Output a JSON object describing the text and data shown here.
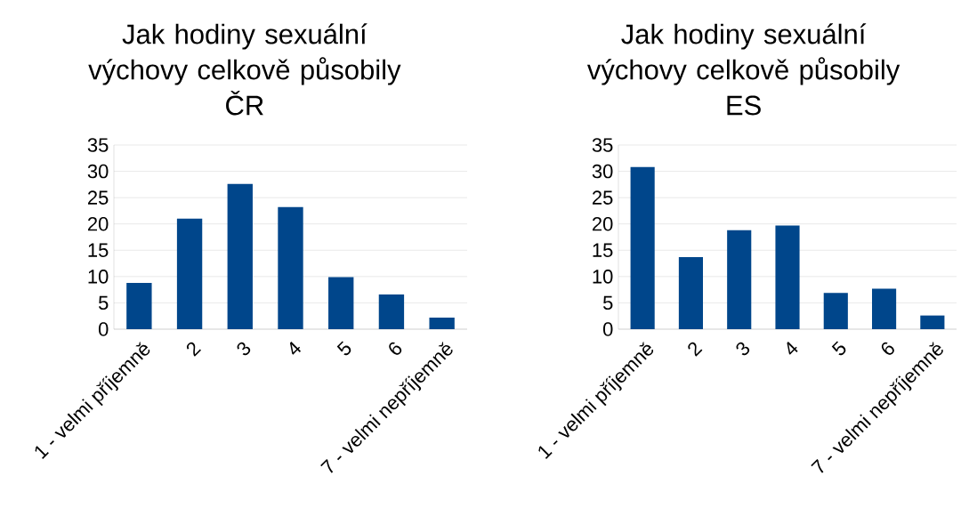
{
  "chart_data": [
    {
      "type": "bar",
      "title": "Jak hodiny sexuální výchovy celkově působily",
      "subtitle": "ČR",
      "categories": [
        "1 - velmi příjemně",
        "2",
        "3",
        "4",
        "5",
        "6",
        "7 - velmi nepříjemně"
      ],
      "values": [
        8.8,
        21.0,
        27.6,
        23.2,
        9.9,
        6.6,
        2.2
      ],
      "color": "#00468b",
      "ylim": [
        0,
        35
      ],
      "yticks": [
        0,
        5,
        10,
        15,
        20,
        25,
        30,
        35
      ],
      "grid": "y"
    },
    {
      "type": "bar",
      "title": "Jak hodiny sexuální výchovy celkově působily",
      "subtitle": "ES",
      "categories": [
        "1 - velmi příjemně",
        "2",
        "3",
        "4",
        "5",
        "6",
        "7 - velmi nepříjemně"
      ],
      "values": [
        30.8,
        13.7,
        18.8,
        19.7,
        6.9,
        7.7,
        2.6
      ],
      "color": "#00468b",
      "ylim": [
        0,
        35
      ],
      "yticks": [
        0,
        5,
        10,
        15,
        20,
        25,
        30,
        35
      ],
      "grid": "y"
    }
  ]
}
